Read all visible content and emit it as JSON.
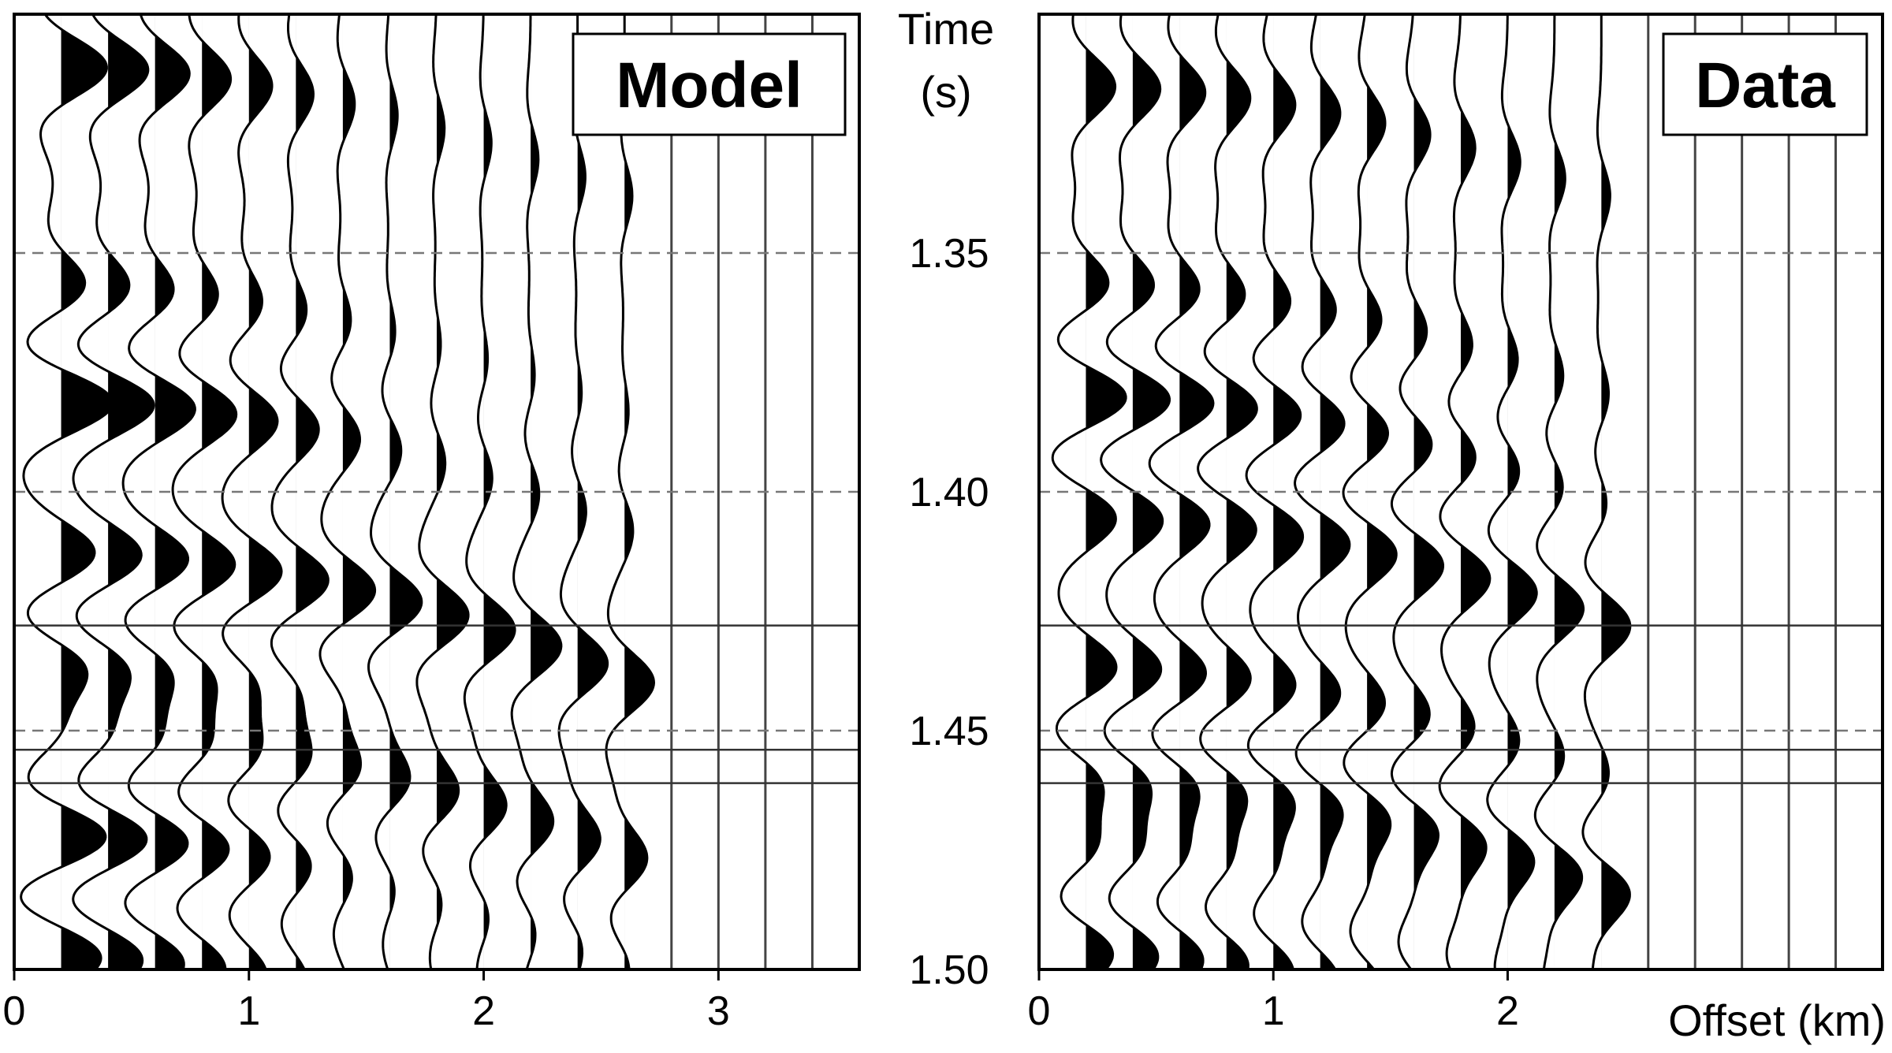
{
  "colors": {
    "ink": "#000000",
    "paper": "#ffffff",
    "guide": "#777777"
  },
  "labels": {
    "time_title_line1": "Time",
    "time_title_line2": "(s)",
    "offset_title": "Offset (km)"
  },
  "chart_data": [
    {
      "type": "seismic-wiggle",
      "title": "Model",
      "xlabel": "",
      "ylabel": "Time (s)",
      "xlim": [
        0,
        3.6
      ],
      "ylim": [
        1.3,
        1.5
      ],
      "x_ticks": [
        0,
        1,
        2,
        3
      ],
      "x_tick_labels": [
        "0",
        "1",
        "2",
        "3"
      ],
      "trace_offsets_km": [
        0.2,
        0.4,
        0.6,
        0.8,
        1.0,
        1.2,
        1.4,
        1.6,
        1.8,
        2.0,
        2.2,
        2.4,
        2.6,
        2.8,
        3.0,
        3.2,
        3.4
      ],
      "traces_with_signal": 13,
      "events": [
        {
          "time_s": 1.311,
          "max_amplitude": 1.15,
          "decay_per_km": 0.55,
          "polarity": 1
        },
        {
          "time_s": 1.357,
          "max_amplitude": 0.7,
          "decay_per_km": 0.5,
          "polarity": 1
        },
        {
          "time_s": 1.381,
          "max_amplitude": 1.35,
          "decay_per_km": 0.5,
          "polarity": 1
        },
        {
          "time_s": 1.413,
          "max_amplitude": 0.85,
          "decay_per_km": 0.08,
          "polarity": 1
        },
        {
          "time_s": 1.437,
          "max_amplitude": 1.0,
          "decay_per_km": 0.45,
          "polarity": 1
        },
        {
          "time_s": 1.45,
          "max_amplitude": 0.6,
          "decay_per_km": 0.0,
          "polarity": 1
        },
        {
          "time_s": 1.472,
          "max_amplitude": 1.3,
          "decay_per_km": 0.55,
          "polarity": 1
        },
        {
          "time_s": 1.497,
          "max_amplitude": 1.1,
          "decay_per_km": 0.6,
          "polarity": 1
        }
      ],
      "dashed_lines_s": [
        1.35,
        1.4,
        1.45
      ],
      "solid_lines_s": [
        1.428,
        1.454,
        1.461
      ]
    },
    {
      "type": "seismic-wiggle",
      "title": "Data",
      "xlabel": "Offset (km)",
      "ylabel": "Time (s)",
      "xlim": [
        0,
        3.6
      ],
      "ylim": [
        1.3,
        1.5
      ],
      "x_ticks": [
        0,
        1,
        2
      ],
      "x_tick_labels": [
        "0",
        "1",
        "2"
      ],
      "trace_offsets_km": [
        0.2,
        0.4,
        0.6,
        0.8,
        1.0,
        1.2,
        1.4,
        1.6,
        1.8,
        2.0,
        2.2,
        2.4,
        2.6,
        2.8,
        3.0,
        3.2,
        3.4
      ],
      "traces_with_signal": 12,
      "events": [
        {
          "time_s": 1.315,
          "max_amplitude": 0.7,
          "decay_per_km": 0.3,
          "polarity": 1
        },
        {
          "time_s": 1.357,
          "max_amplitude": 0.65,
          "decay_per_km": 0.3,
          "polarity": 1
        },
        {
          "time_s": 1.38,
          "max_amplitude": 1.1,
          "decay_per_km": 0.35,
          "polarity": 1
        },
        {
          "time_s": 1.405,
          "max_amplitude": 0.75,
          "decay_per_km": 0.05,
          "polarity": 1
        },
        {
          "time_s": 1.437,
          "max_amplitude": 0.8,
          "decay_per_km": 0.3,
          "polarity": 1
        },
        {
          "time_s": 1.461,
          "max_amplitude": 0.75,
          "decay_per_km": 0.0,
          "polarity": 1
        },
        {
          "time_s": 1.474,
          "max_amplitude": 0.75,
          "decay_per_km": 0.3,
          "polarity": 1
        },
        {
          "time_s": 1.496,
          "max_amplitude": 0.75,
          "decay_per_km": 0.3,
          "polarity": 1
        }
      ],
      "dashed_lines_s": [
        1.35,
        1.4,
        1.45
      ],
      "solid_lines_s": [
        1.428,
        1.454,
        1.461
      ]
    }
  ],
  "time_axis": {
    "ticks_s": [
      1.35,
      1.4,
      1.45,
      1.5
    ],
    "tick_labels": [
      "1.35",
      "1.40",
      "1.45",
      "1.50"
    ]
  }
}
